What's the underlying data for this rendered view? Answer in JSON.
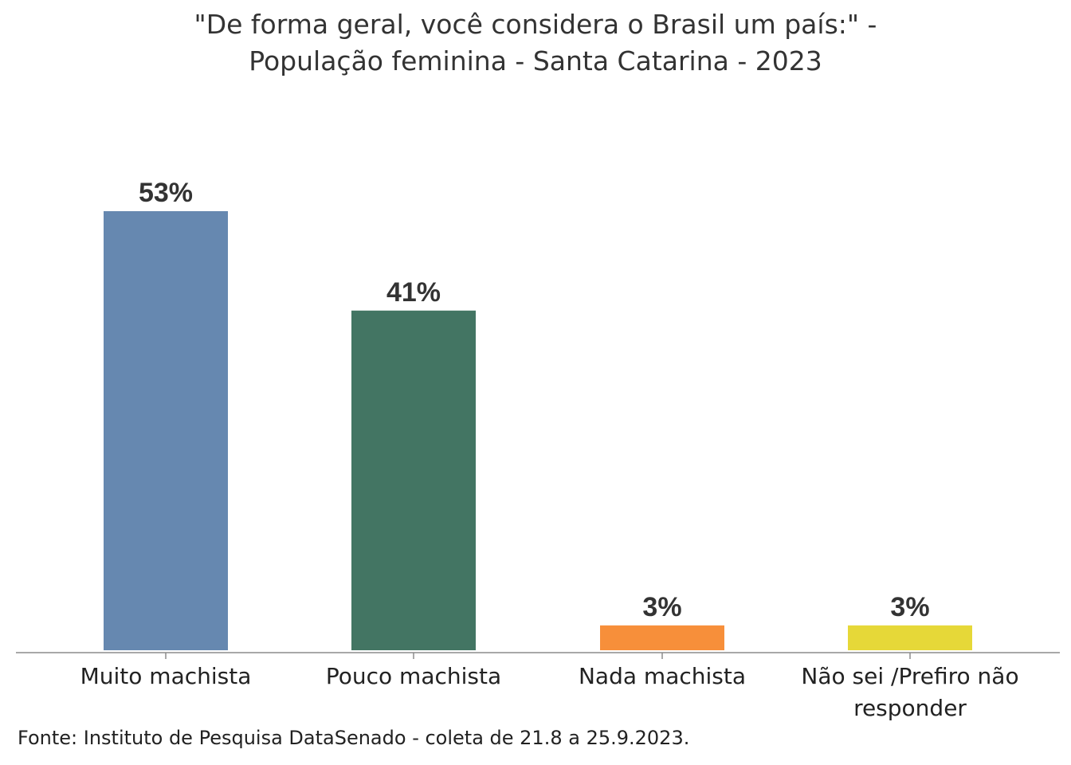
{
  "chart_data": {
    "type": "bar",
    "title_lines": [
      "\"De forma geral, você considera o Brasil um país:\" -",
      "População feminina - Santa Catarina - 2023"
    ],
    "categories": [
      [
        "Muito machista"
      ],
      [
        "Pouco machista"
      ],
      [
        "Nada machista"
      ],
      [
        "Não sei /Prefiro não",
        "responder"
      ]
    ],
    "values": [
      53,
      41,
      3,
      3
    ],
    "data_labels": [
      "53%",
      "41%",
      "3%",
      "3%"
    ],
    "colors": [
      "#6688b0",
      "#437563",
      "#f78f3a",
      "#e6d838"
    ],
    "ylim": [
      0,
      53
    ],
    "grid": false,
    "legend": "none"
  },
  "source": "Fonte: Instituto de Pesquisa DataSenado - coleta de 21.8 a 25.9.2023."
}
